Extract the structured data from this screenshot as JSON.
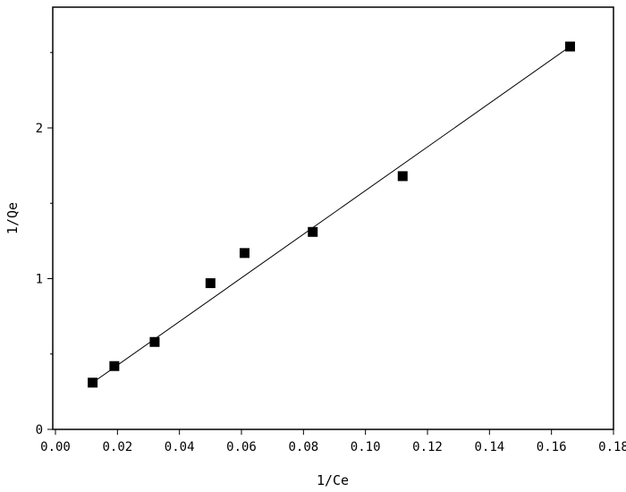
{
  "chart_data": {
    "type": "scatter",
    "title": "",
    "xlabel": "1/Ce",
    "ylabel": "1/Qe",
    "xlim": [
      0.0,
      0.18
    ],
    "ylim": [
      0,
      2.65
    ],
    "xticks": [
      0.0,
      0.02,
      0.04,
      0.06,
      0.08,
      0.1,
      0.12,
      0.14,
      0.16,
      0.18
    ],
    "xtick_labels": [
      "0.00",
      "0.02",
      "0.04",
      "0.06",
      "0.08",
      "0.10",
      "0.12",
      "0.14",
      "0.16",
      "0.18"
    ],
    "yticks": [
      0,
      1,
      2
    ],
    "ytick_labels": [
      "0",
      "1",
      "2"
    ],
    "grid": false,
    "legend": "none",
    "marker_color": "#000000",
    "series": [
      {
        "points": [
          {
            "x": 0.012,
            "y": 0.31
          },
          {
            "x": 0.019,
            "y": 0.42
          },
          {
            "x": 0.032,
            "y": 0.58
          },
          {
            "x": 0.05,
            "y": 0.97
          },
          {
            "x": 0.061,
            "y": 1.17
          },
          {
            "x": 0.083,
            "y": 1.31
          },
          {
            "x": 0.112,
            "y": 1.68
          },
          {
            "x": 0.166,
            "y": 2.54
          }
        ]
      }
    ],
    "fit_line": {
      "from": {
        "x": 0.012,
        "y": 0.31
      },
      "to": {
        "x": 0.166,
        "y": 2.54
      }
    }
  }
}
